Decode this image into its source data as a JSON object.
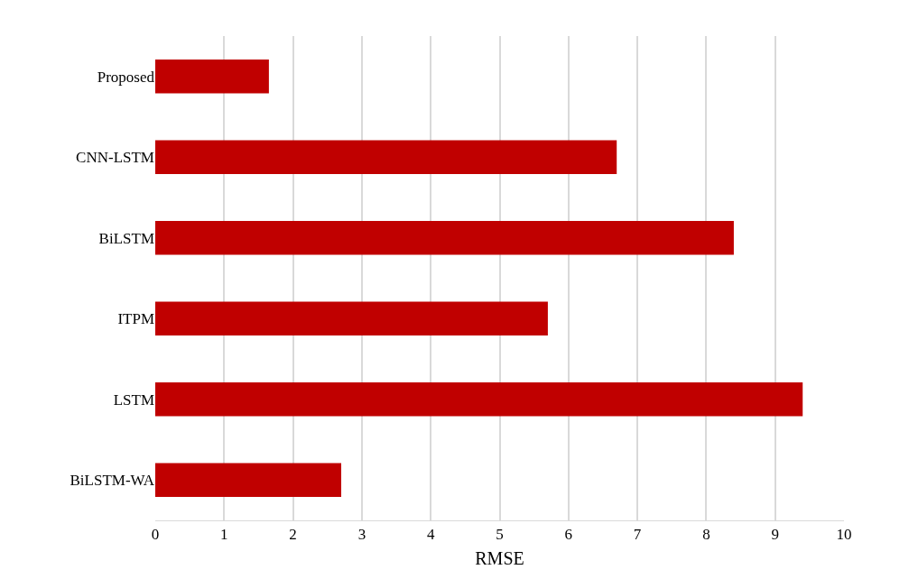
{
  "chart_data": {
    "type": "bar",
    "orientation": "horizontal",
    "xlabel": "RMSE",
    "categories": [
      "Proposed",
      "CNN-LSTM",
      "BiLSTM",
      "ITPM",
      "LSTM",
      "BiLSTM-WA"
    ],
    "values": [
      1.65,
      6.7,
      8.4,
      5.7,
      9.4,
      2.7
    ],
    "color": "#c00000",
    "xlim": [
      0,
      10
    ],
    "xticks": [
      0,
      1,
      2,
      3,
      4,
      5,
      6,
      7,
      8,
      9,
      10
    ],
    "grid": "x",
    "legend": false
  }
}
